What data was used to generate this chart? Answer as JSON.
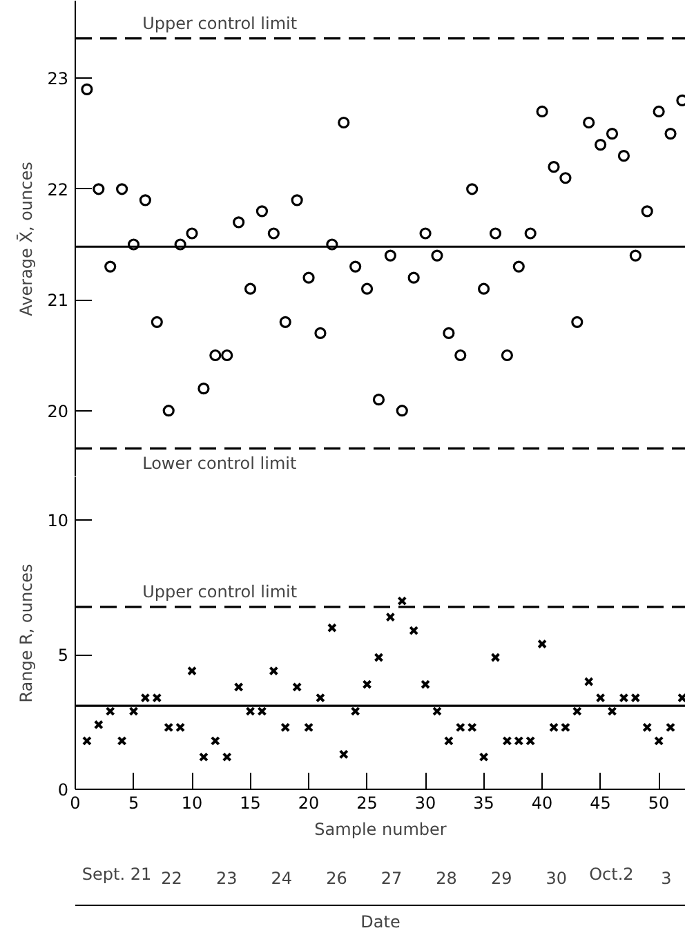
{
  "chart_data": [
    {
      "type": "scatter",
      "ylabel": "Average X̄, ounces",
      "x": [
        1,
        2,
        3,
        4,
        5,
        6,
        7,
        8,
        9,
        10,
        11,
        12,
        13,
        14,
        15,
        16,
        17,
        18,
        19,
        20,
        21,
        22,
        23,
        24,
        25,
        26,
        27,
        28,
        29,
        30,
        31,
        32,
        33,
        34,
        35,
        36,
        37,
        38,
        39,
        40,
        41,
        42,
        43,
        44,
        45,
        46,
        47,
        48,
        49,
        50,
        51,
        52
      ],
      "series": [
        {
          "color": "#000000",
          "values": [
            22.9,
            22.0,
            21.3,
            22.0,
            21.5,
            21.9,
            20.8,
            20.0,
            21.5,
            21.6,
            20.2,
            20.5,
            20.5,
            21.7,
            21.1,
            21.8,
            21.6,
            20.8,
            21.9,
            21.2,
            20.7,
            21.5,
            22.6,
            21.3,
            21.1,
            20.1,
            21.4,
            20.0,
            21.2,
            21.6,
            21.4,
            20.7,
            20.5,
            22.0,
            21.1,
            21.6,
            20.5,
            21.3,
            21.6,
            22.7,
            22.2,
            22.1,
            20.8,
            22.6,
            22.4,
            22.5,
            22.3,
            21.4,
            21.8,
            22.7,
            22.5,
            22.8
          ]
        }
      ],
      "marker": "circle",
      "xlim": [
        0,
        52.3
      ],
      "ylim": [
        19.4,
        23.7
      ],
      "yticks": [
        20,
        21,
        22,
        23
      ],
      "tick_labels": "y",
      "grid": false,
      "ref_lines": [
        {
          "axis": "y",
          "value": 23.36,
          "label": "Upper control limit",
          "line_style": "dashed"
        },
        {
          "axis": "y",
          "value": 21.48,
          "label": null,
          "line_style": "solid"
        },
        {
          "axis": "y",
          "value": 19.66,
          "label": "Lower control limit",
          "line_style": "dashed"
        }
      ]
    },
    {
      "type": "scatter",
      "ylabel": "Range R, ounces",
      "xlabel": "Sample number",
      "x2label": "Date",
      "x": [
        1,
        2,
        3,
        4,
        5,
        6,
        7,
        8,
        9,
        10,
        11,
        12,
        13,
        14,
        15,
        16,
        17,
        18,
        19,
        20,
        21,
        22,
        23,
        24,
        25,
        26,
        27,
        28,
        29,
        30,
        31,
        32,
        33,
        34,
        35,
        36,
        37,
        38,
        39,
        40,
        41,
        42,
        43,
        44,
        45,
        46,
        47,
        48,
        49,
        50,
        51,
        52
      ],
      "series": [
        {
          "color": "#000000",
          "values": [
            1.8,
            2.4,
            2.9,
            1.8,
            2.9,
            3.4,
            3.4,
            2.3,
            2.3,
            4.4,
            1.2,
            1.8,
            1.2,
            3.8,
            2.9,
            2.9,
            4.4,
            2.3,
            3.8,
            2.3,
            3.4,
            6.0,
            1.3,
            2.9,
            3.9,
            4.9,
            6.4,
            7.0,
            5.9,
            3.9,
            2.9,
            1.8,
            2.3,
            2.3,
            1.2,
            4.9,
            1.8,
            1.8,
            1.8,
            5.4,
            2.3,
            2.3,
            2.9,
            4.0,
            3.4,
            2.9,
            3.4,
            3.4,
            2.3,
            1.8,
            2.3,
            3.4
          ]
        }
      ],
      "marker": "cross",
      "xlim": [
        0,
        52.3
      ],
      "ylim": [
        0,
        11.6
      ],
      "yticks": [
        0,
        5,
        10
      ],
      "xticks": [
        0,
        5,
        10,
        15,
        20,
        25,
        30,
        35,
        40,
        45,
        50
      ],
      "grid": false,
      "annotations": [
        "Sept. 21",
        "22",
        "23",
        "24",
        "26",
        "27",
        "28",
        "29",
        "30",
        "Oct.2",
        "3"
      ],
      "ref_lines": [
        {
          "axis": "y",
          "value": 6.78,
          "label": "Upper control limit",
          "line_style": "dashed"
        },
        {
          "axis": "y",
          "value": 3.1,
          "label": null,
          "line_style": "solid"
        }
      ]
    }
  ]
}
